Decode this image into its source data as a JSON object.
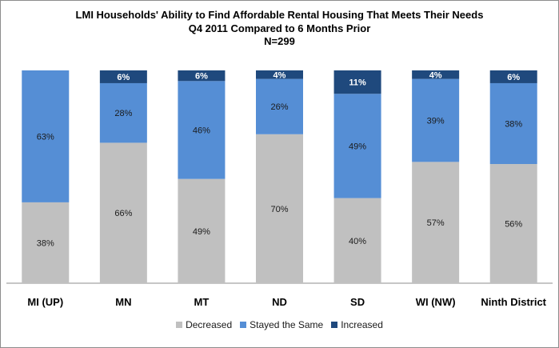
{
  "chart_data": {
    "type": "bar",
    "stacked": true,
    "title": "LMI Households' Ability to Find Affordable Rental Housing That Meets Their Needs",
    "subtitle": "Q4 2011 Compared to 6 Months Prior",
    "subtitle2": "N=299",
    "categories": [
      "MI (UP)",
      "MN",
      "MT",
      "ND",
      "SD",
      "WI (NW)",
      "Ninth District"
    ],
    "series": [
      {
        "name": "Decreased",
        "color": "#c0c0c0",
        "values": [
          38,
          66,
          49,
          70,
          40,
          57,
          56
        ],
        "labels": [
          "38%",
          "66%",
          "49%",
          "70%",
          "40%",
          "57%",
          "56%"
        ]
      },
      {
        "name": "Stayed the Same",
        "color": "#558ed5",
        "values": [
          63,
          28,
          46,
          26,
          49,
          39,
          38
        ],
        "labels": [
          "63%",
          "28%",
          "46%",
          "26%",
          "49%",
          "39%",
          "38%"
        ]
      },
      {
        "name": "Increased",
        "color": "#1f497d",
        "values": [
          0,
          6,
          6,
          4,
          11,
          4,
          6
        ],
        "labels": [
          "",
          "6%",
          "6%",
          "4%",
          "11%",
          "4%",
          "6%"
        ]
      }
    ],
    "ylim": [
      0,
      100
    ],
    "grid": false,
    "legend_position": "bottom"
  }
}
